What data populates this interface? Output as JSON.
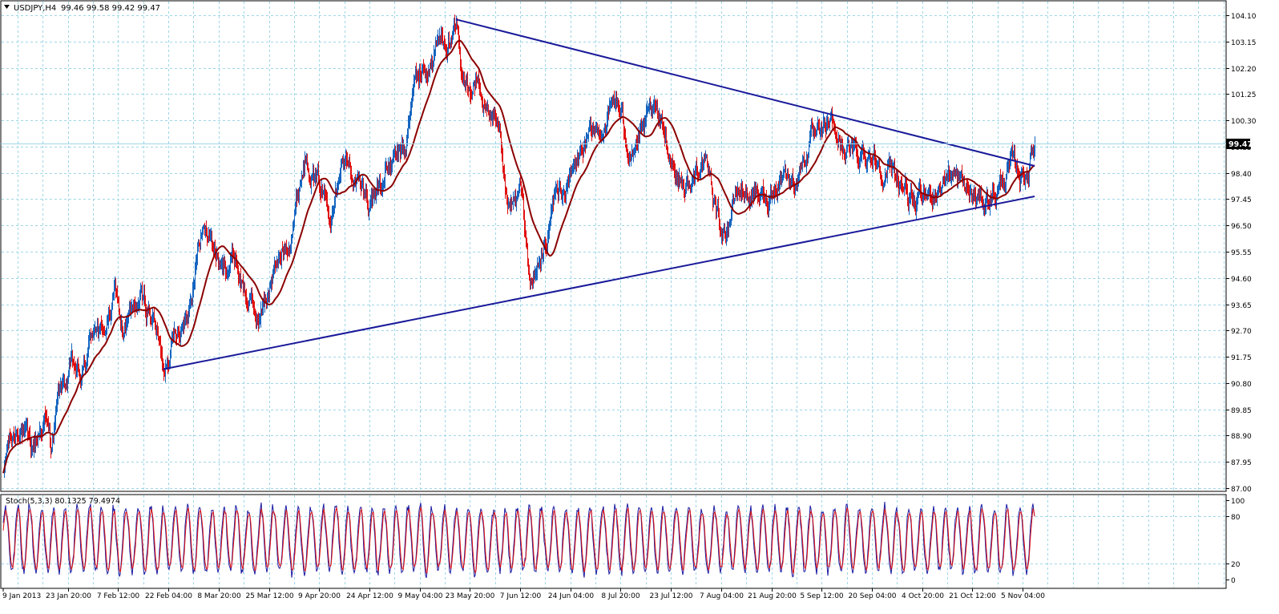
{
  "window": {
    "symbol_label": "USDJPY,H4",
    "ohlc_label": "99.46 99.58 99.42 99.47",
    "current_price_label": "99.47",
    "indicator_label": "Stoch(5,3,3) 80.1325 79.4974"
  },
  "colors": {
    "background": "#ffffff",
    "grid": "#9ed6e8",
    "axis": "#000000",
    "bull_bar": "#1565c0",
    "bear_bar": "#e01010",
    "moving_average": "#8b0000",
    "trendline": "#1a1a9a",
    "stoch_main": "#1a1aa0",
    "stoch_signal": "#e01010",
    "price_tag_bg": "#000000",
    "price_tag_fg": "#ffffff"
  },
  "chart_data": [
    {
      "type": "candlestick",
      "symbol": "USDJPY",
      "timeframe": "H4",
      "y_ticks": [
        "104.10",
        "103.15",
        "102.20",
        "101.25",
        "100.30",
        "99.35",
        "98.40",
        "97.45",
        "96.50",
        "95.55",
        "94.60",
        "93.65",
        "92.70",
        "91.75",
        "90.80",
        "89.85",
        "88.90",
        "87.95",
        "87.00"
      ],
      "ylim": [
        87.0,
        104.1
      ],
      "x_ticks": [
        "9 Jan 2013",
        "23 Jan 20:00",
        "7 Feb 12:00",
        "22 Feb 04:00",
        "8 Mar 20:00",
        "25 Mar 12:00",
        "9 Apr 20:00",
        "24 Apr 12:00",
        "9 May 04:00",
        "23 May 20:00",
        "7 Jun 12:00",
        "24 Jun 04:00",
        "8 Jul 20:00",
        "23 Jul 12:00",
        "7 Aug 04:00",
        "21 Aug 20:00",
        "5 Sep 12:00",
        "20 Sep 04:00",
        "4 Oct 20:00",
        "21 Oct 12:00",
        "5 Nov 04:00"
      ],
      "last_price": 99.47,
      "path_anchors": [
        {
          "x": "9 Jan 2013",
          "y": 87.3
        },
        {
          "x": "10 Jan 2013",
          "y": 88.4
        },
        {
          "x": "14 Jan 2013",
          "y": 89.4
        },
        {
          "x": "17 Jan 2013",
          "y": 88.2
        },
        {
          "x": "21 Jan 2013",
          "y": 89.6
        },
        {
          "x": "23 Jan 2013",
          "y": 88.5
        },
        {
          "x": "25 Jan 2013",
          "y": 90.2
        },
        {
          "x": "29 Jan 2013",
          "y": 91.3
        },
        {
          "x": "1 Feb 2013",
          "y": 90.8
        },
        {
          "x": "5 Feb 2013",
          "y": 93.2
        },
        {
          "x": "7 Feb 2013",
          "y": 92.4
        },
        {
          "x": "11 Feb 2013",
          "y": 94.0
        },
        {
          "x": "13 Feb 2013",
          "y": 92.6
        },
        {
          "x": "18 Feb 2013",
          "y": 93.8
        },
        {
          "x": "22 Feb 2013",
          "y": 93.2
        },
        {
          "x": "25 Feb 2013",
          "y": 91.3
        },
        {
          "x": "27 Feb 2013",
          "y": 92.3
        },
        {
          "x": "4 Mar 2013",
          "y": 93.5
        },
        {
          "x": "8 Mar 2013",
          "y": 96.3
        },
        {
          "x": "11 Mar 2013",
          "y": 96.1
        },
        {
          "x": "14 Mar 2013",
          "y": 94.8
        },
        {
          "x": "18 Mar 2013",
          "y": 95.4
        },
        {
          "x": "21 Mar 2013",
          "y": 94.0
        },
        {
          "x": "25 Mar 2013",
          "y": 93.0
        },
        {
          "x": "28 Mar 2013",
          "y": 94.3
        },
        {
          "x": "3 Apr 2013",
          "y": 96.2
        },
        {
          "x": "8 Apr 2013",
          "y": 99.3
        },
        {
          "x": "10 Apr 2013",
          "y": 98.4
        },
        {
          "x": "15 Apr 2013",
          "y": 97.2
        },
        {
          "x": "18 Apr 2013",
          "y": 99.2
        },
        {
          "x": "22 Apr 2013",
          "y": 98.2
        },
        {
          "x": "26 Apr 2013",
          "y": 97.3
        },
        {
          "x": "1 May 2013",
          "y": 98.4
        },
        {
          "x": "7 May 2013",
          "y": 99.1
        },
        {
          "x": "10 May 2013",
          "y": 101.8
        },
        {
          "x": "14 May 2013",
          "y": 102.2
        },
        {
          "x": "17 May 2013",
          "y": 103.2
        },
        {
          "x": "22 May 2013",
          "y": 103.4
        },
        {
          "x": "24 May 2013",
          "y": 101.2
        },
        {
          "x": "28 May 2013",
          "y": 101.9
        },
        {
          "x": "31 May 2013",
          "y": 100.3
        },
        {
          "x": "4 Jun 2013",
          "y": 99.2
        },
        {
          "x": "6 Jun 2013",
          "y": 96.7
        },
        {
          "x": "10 Jun 2013",
          "y": 97.6
        },
        {
          "x": "13 Jun 2013",
          "y": 94.2
        },
        {
          "x": "17 Jun 2013",
          "y": 95.6
        },
        {
          "x": "20 Jun 2013",
          "y": 97.6
        },
        {
          "x": "24 Jun 2013",
          "y": 98.0
        },
        {
          "x": "28 Jun 2013",
          "y": 99.2
        },
        {
          "x": "3 Jul 2013",
          "y": 99.9
        },
        {
          "x": "8 Jul 2013",
          "y": 101.1
        },
        {
          "x": "11 Jul 2013",
          "y": 99.4
        },
        {
          "x": "16 Jul 2013",
          "y": 99.9
        },
        {
          "x": "19 Jul 2013",
          "y": 100.4
        },
        {
          "x": "23 Jul 2013",
          "y": 99.5
        },
        {
          "x": "26 Jul 2013",
          "y": 98.3
        },
        {
          "x": "30 Jul 2013",
          "y": 97.9
        },
        {
          "x": "2 Aug 2013",
          "y": 99.1
        },
        {
          "x": "7 Aug 2013",
          "y": 96.8
        },
        {
          "x": "9 Aug 2013",
          "y": 96.3
        },
        {
          "x": "13 Aug 2013",
          "y": 97.8
        },
        {
          "x": "16 Aug 2013",
          "y": 97.6
        },
        {
          "x": "21 Aug 2013",
          "y": 97.4
        },
        {
          "x": "26 Aug 2013",
          "y": 98.6
        },
        {
          "x": "29 Aug 2013",
          "y": 98.0
        },
        {
          "x": "3 Sep 2013",
          "y": 99.6
        },
        {
          "x": "6 Sep 2013",
          "y": 99.4
        },
        {
          "x": "9 Sep 2013",
          "y": 100.2
        },
        {
          "x": "12 Sep 2013",
          "y": 99.4
        },
        {
          "x": "17 Sep 2013",
          "y": 98.9
        },
        {
          "x": "20 Sep 2013",
          "y": 99.2
        },
        {
          "x": "25 Sep 2013",
          "y": 98.6
        },
        {
          "x": "30 Sep 2013",
          "y": 98.1
        },
        {
          "x": "4 Oct 2013",
          "y": 97.0
        },
        {
          "x": "9 Oct 2013",
          "y": 97.7
        },
        {
          "x": "14 Oct 2013",
          "y": 98.5
        },
        {
          "x": "18 Oct 2013",
          "y": 97.8
        },
        {
          "x": "23 Oct 2013",
          "y": 97.3
        },
        {
          "x": "28 Oct 2013",
          "y": 97.8
        },
        {
          "x": "1 Nov 2013",
          "y": 98.6
        },
        {
          "x": "4 Nov 2013",
          "y": 98.3
        },
        {
          "x": "6 Nov 2013",
          "y": 98.6
        },
        {
          "x": "8 Nov 2013",
          "y": 99.47
        }
      ],
      "trendlines": [
        {
          "name": "resistance",
          "from": {
            "x": "22 May 2013",
            "y": 103.95
          },
          "to": {
            "x": "8 Nov 2013",
            "y": 98.65
          }
        },
        {
          "name": "support",
          "from": {
            "x": "25 Feb 2013",
            "y": 91.3
          },
          "to": {
            "x": "8 Nov 2013",
            "y": 97.55
          }
        }
      ],
      "moving_average": {
        "type": "simple",
        "color_key": "moving_average"
      },
      "grid": true
    },
    {
      "type": "line",
      "indicator": "Stochastic",
      "params": "5,3,3",
      "series": [
        {
          "name": "main",
          "value_last": 80.1325
        },
        {
          "name": "signal",
          "value_last": 79.4974
        }
      ],
      "ylim": [
        0,
        100
      ],
      "y_ticks": [
        "100",
        "80",
        "20",
        "0"
      ],
      "levels": [
        20,
        80
      ]
    }
  ]
}
